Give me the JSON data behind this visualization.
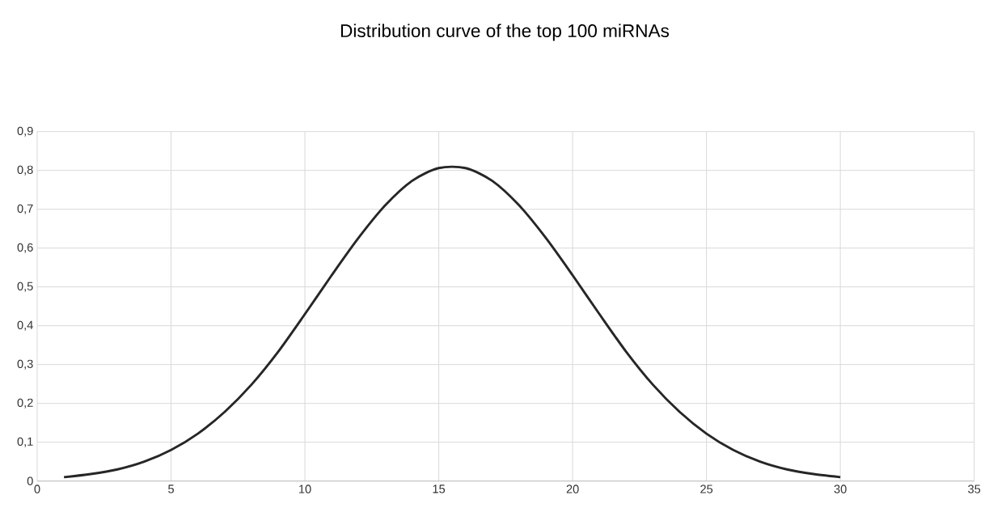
{
  "chart_data": {
    "type": "line",
    "title": "Distribution curve of the top 100 miRNAs",
    "x": [
      1,
      2,
      3,
      4,
      5,
      6,
      7,
      8,
      9,
      10,
      11,
      12,
      13,
      14,
      15,
      16,
      17,
      18,
      19,
      20,
      21,
      22,
      23,
      24,
      25,
      26,
      27,
      28,
      29,
      30
    ],
    "values": [
      0.01,
      0.018,
      0.03,
      0.05,
      0.08,
      0.122,
      0.178,
      0.248,
      0.333,
      0.43,
      0.53,
      0.626,
      0.71,
      0.773,
      0.806,
      0.806,
      0.773,
      0.71,
      0.626,
      0.53,
      0.43,
      0.333,
      0.248,
      0.178,
      0.122,
      0.08,
      0.05,
      0.03,
      0.018,
      0.01
    ],
    "color": "#262626",
    "marker": "none",
    "line_style": "solid",
    "grid": true,
    "xlim": [
      0,
      35
    ],
    "xticks": [
      0,
      5,
      10,
      15,
      20,
      25,
      30,
      35
    ],
    "ylim": [
      0,
      0.9
    ],
    "yticks": [
      0,
      {
        "value": 0.1,
        "label": "0,1"
      },
      {
        "value": 0.2,
        "label": "0,2"
      },
      {
        "value": 0.3,
        "label": "0,3"
      },
      {
        "value": 0.4,
        "label": "0,4"
      },
      {
        "value": 0.5,
        "label": "0,5"
      },
      {
        "value": 0.6,
        "label": "0,6"
      },
      {
        "value": 0.7,
        "label": "0,7"
      },
      {
        "value": 0.8,
        "label": "0,8"
      },
      {
        "value": 0.9,
        "label": "0,9"
      }
    ]
  }
}
